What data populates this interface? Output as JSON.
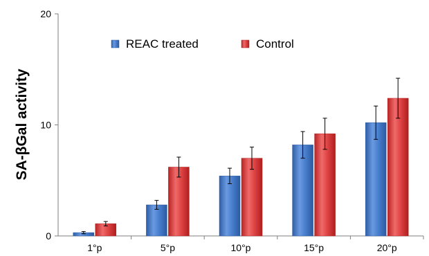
{
  "chart_data": {
    "type": "bar",
    "title": "",
    "xlabel": "",
    "ylabel": "SA-βGal activity",
    "categories": [
      "1°p",
      "5°p",
      "10°p",
      "15°p",
      "20°p"
    ],
    "ylim": [
      0,
      20
    ],
    "yticks": [
      "0",
      "10",
      "20"
    ],
    "grid": false,
    "legend_position": "top-left",
    "series": [
      {
        "name": "REAC treated",
        "color": "#3f74c6",
        "values": [
          0.3,
          2.8,
          5.4,
          8.2,
          10.2
        ],
        "errors": [
          0.1,
          0.4,
          0.7,
          1.2,
          1.5
        ]
      },
      {
        "name": "Control",
        "color": "#d93a3a",
        "values": [
          1.1,
          6.2,
          7.0,
          9.2,
          12.4
        ],
        "errors": [
          0.2,
          0.9,
          1.0,
          1.4,
          1.8
        ]
      }
    ]
  }
}
